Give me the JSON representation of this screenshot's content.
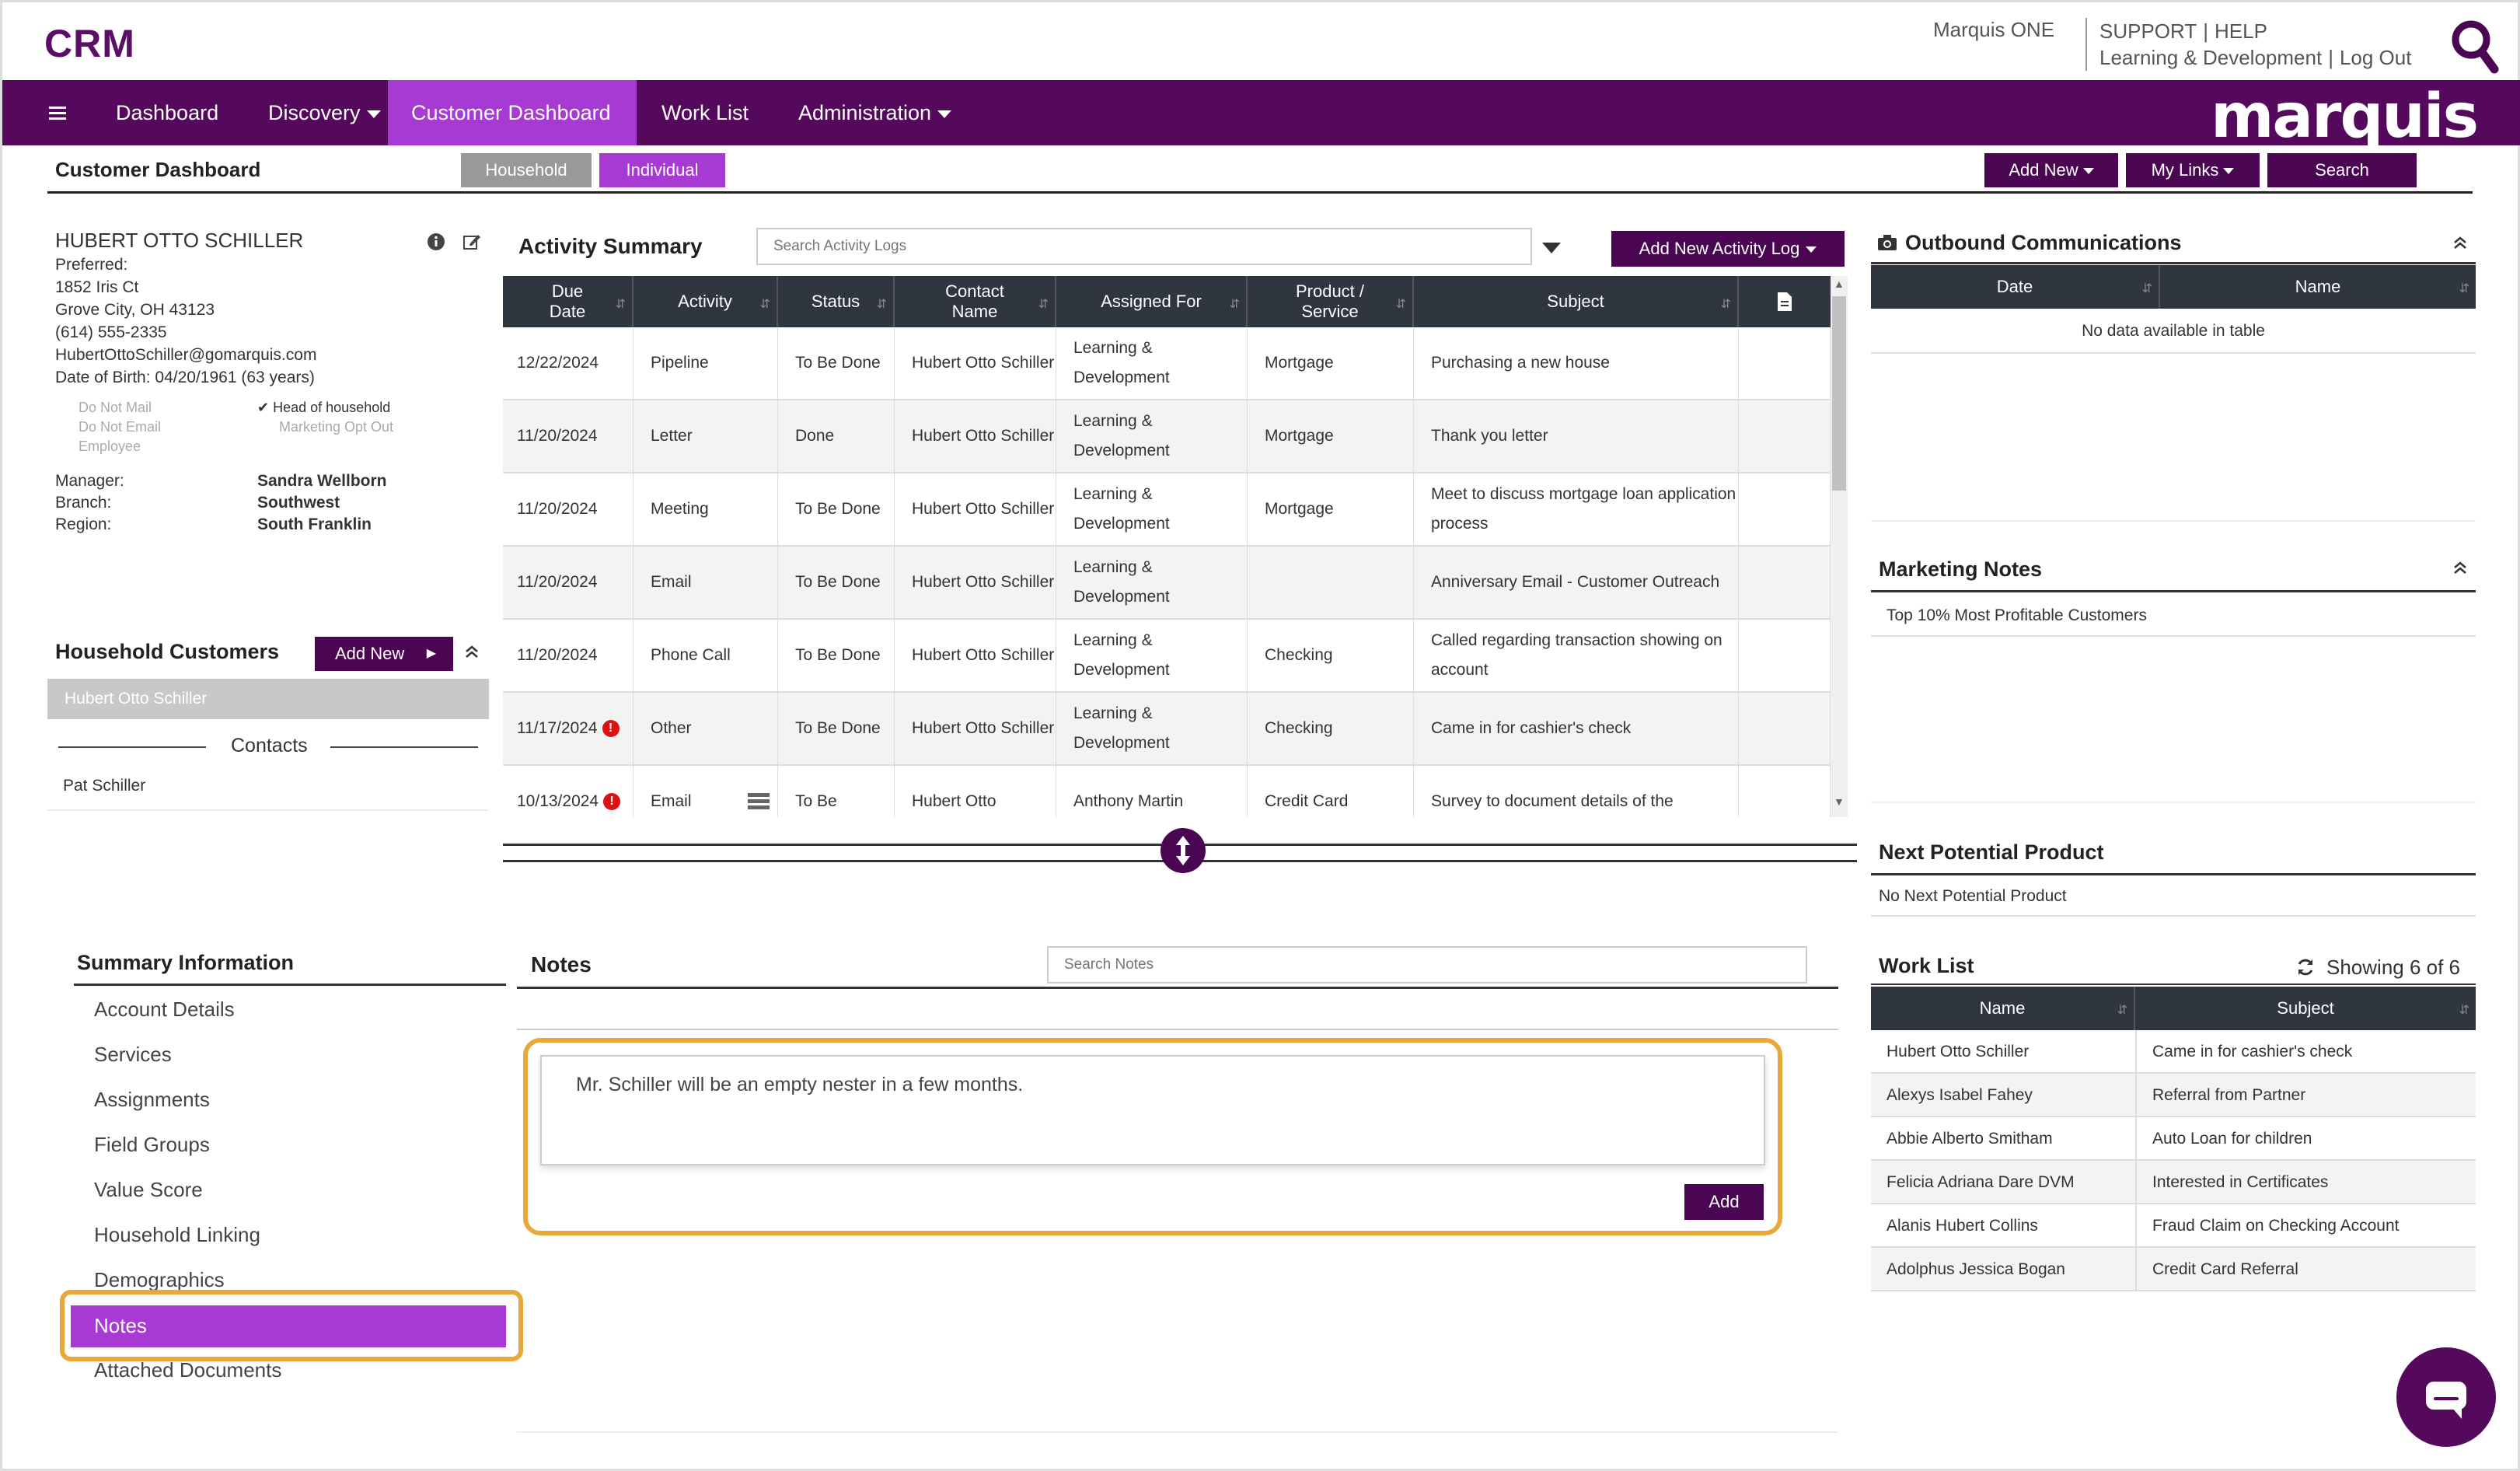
{
  "app": {
    "title": "CRM"
  },
  "top": {
    "marquis_one": "Marquis ONE",
    "support": "SUPPORT",
    "help": "HELP",
    "learning": "Learning & Development",
    "logout": "Log Out",
    "sep": "|"
  },
  "nav": {
    "items": [
      {
        "label": "Dashboard"
      },
      {
        "label": "Discovery"
      },
      {
        "label": "Customer Dashboard"
      },
      {
        "label": "Work List"
      },
      {
        "label": "Administration"
      }
    ],
    "brand": "marquis"
  },
  "subhead": {
    "title": "Customer Dashboard",
    "household": "Household",
    "individual": "Individual",
    "add_new": "Add New",
    "my_links": "My Links",
    "search": "Search"
  },
  "profile": {
    "name": "HUBERT OTTO SCHILLER",
    "preferred": "Preferred:",
    "street": "1852 Iris Ct",
    "city": "Grove City, OH 43123",
    "phone": "(614) 555-2335",
    "email": "HubertOttoSchiller@gomarquis.com",
    "dob": "Date of Birth: 04/20/1961 (63 years)",
    "flags_left": [
      "Do Not Mail",
      "Do Not Email",
      "Employee"
    ],
    "head_of_household": "Head of household",
    "marketing_opt_out": "Marketing Opt Out",
    "manager_k": "Manager:",
    "manager_v": "Sandra Wellborn",
    "branch_k": "Branch:",
    "branch_v": "Southwest",
    "region_k": "Region:",
    "region_v": "South Franklin"
  },
  "household": {
    "title": "Household Customers",
    "add_new": "Add New",
    "selected": "Hubert Otto Schiller",
    "contacts_label": "Contacts",
    "contacts": [
      "Pat Schiller"
    ]
  },
  "summary": {
    "title": "Summary Information",
    "items": [
      "Account Details",
      "Services",
      "Assignments",
      "Field Groups",
      "Value Score",
      "Household Linking",
      "Demographics",
      "Notes",
      "Attached Documents"
    ]
  },
  "activity": {
    "title": "Activity Summary",
    "search_placeholder": "Search Activity Logs",
    "add_label": "Add New Activity Log",
    "columns": [
      "Due Date",
      "Activity",
      "Status",
      "Contact Name",
      "Assigned For",
      "Product / Service",
      "Subject"
    ],
    "rows": [
      {
        "date": "12/22/2024",
        "activity": "Pipeline",
        "status": "To Be Done",
        "contact": "Hubert Otto Schiller",
        "assigned": "Learning & Development",
        "product": "Mortgage",
        "subject": "Purchasing a new house"
      },
      {
        "date": "11/20/2024",
        "activity": "Letter",
        "status": "Done",
        "contact": "Hubert Otto Schiller",
        "assigned": "Learning & Development",
        "product": "Mortgage",
        "subject": "Thank you letter"
      },
      {
        "date": "11/20/2024",
        "activity": "Meeting",
        "status": "To Be Done",
        "contact": "Hubert Otto Schiller",
        "assigned": "Learning & Development",
        "product": "Mortgage",
        "subject": "Meet to discuss mortgage loan application process"
      },
      {
        "date": "11/20/2024",
        "activity": "Email",
        "status": "To Be Done",
        "contact": "Hubert Otto Schiller",
        "assigned": "Learning & Development",
        "product": "",
        "subject": "Anniversary Email - Customer Outreach"
      },
      {
        "date": "11/20/2024",
        "activity": "Phone Call",
        "status": "To Be Done",
        "contact": "Hubert Otto Schiller",
        "assigned": "Learning & Development",
        "product": "Checking",
        "subject": "Called regarding transaction showing on account"
      },
      {
        "date": "11/17/2024",
        "activity": "Other",
        "status": "To Be Done",
        "contact": "Hubert Otto Schiller",
        "assigned": "Learning & Development",
        "product": "Checking",
        "subject": "Came in for cashier's check"
      },
      {
        "date": "10/13/2024",
        "activity": "Email",
        "status": "To Be",
        "contact": "Hubert Otto",
        "assigned": "Anthony Martin",
        "product": "Credit Card",
        "subject": "Survey to document details of the"
      }
    ],
    "alert_glyph": "!"
  },
  "notes": {
    "title": "Notes",
    "search_placeholder": "Search Notes",
    "text": "Mr. Schiller will be an empty nester in a few months.",
    "add": "Add"
  },
  "outbound": {
    "title": "Outbound Communications",
    "columns": [
      "Date",
      "Name"
    ],
    "empty": "No data available in table"
  },
  "marketing": {
    "title": "Marketing Notes",
    "note": "Top 10% Most Profitable Customers"
  },
  "next_product": {
    "title": "Next Potential Product",
    "value": "No Next Potential Product"
  },
  "worklist": {
    "title": "Work List",
    "count": "Showing 6 of 6",
    "columns": [
      "Name",
      "Subject"
    ],
    "rows": [
      {
        "name": "Hubert Otto Schiller",
        "subject": "Came in for cashier's check"
      },
      {
        "name": "Alexys Isabel Fahey",
        "subject": "Referral from Partner"
      },
      {
        "name": "Abbie Alberto Smitham",
        "subject": "Auto Loan for children"
      },
      {
        "name": "Felicia Adriana Dare DVM",
        "subject": "Interested in Certificates"
      },
      {
        "name": "Alanis Hubert Collins",
        "subject": "Fraud Claim on Checking Account"
      },
      {
        "name": "Adolphus Jessica Bogan",
        "subject": "Credit Card Referral"
      }
    ]
  },
  "colors": {
    "nav": "#55095d",
    "accent": "#a63ad3",
    "button": "#4a0652",
    "highlight": "#e6a93a",
    "table_head": "#2f3640"
  }
}
